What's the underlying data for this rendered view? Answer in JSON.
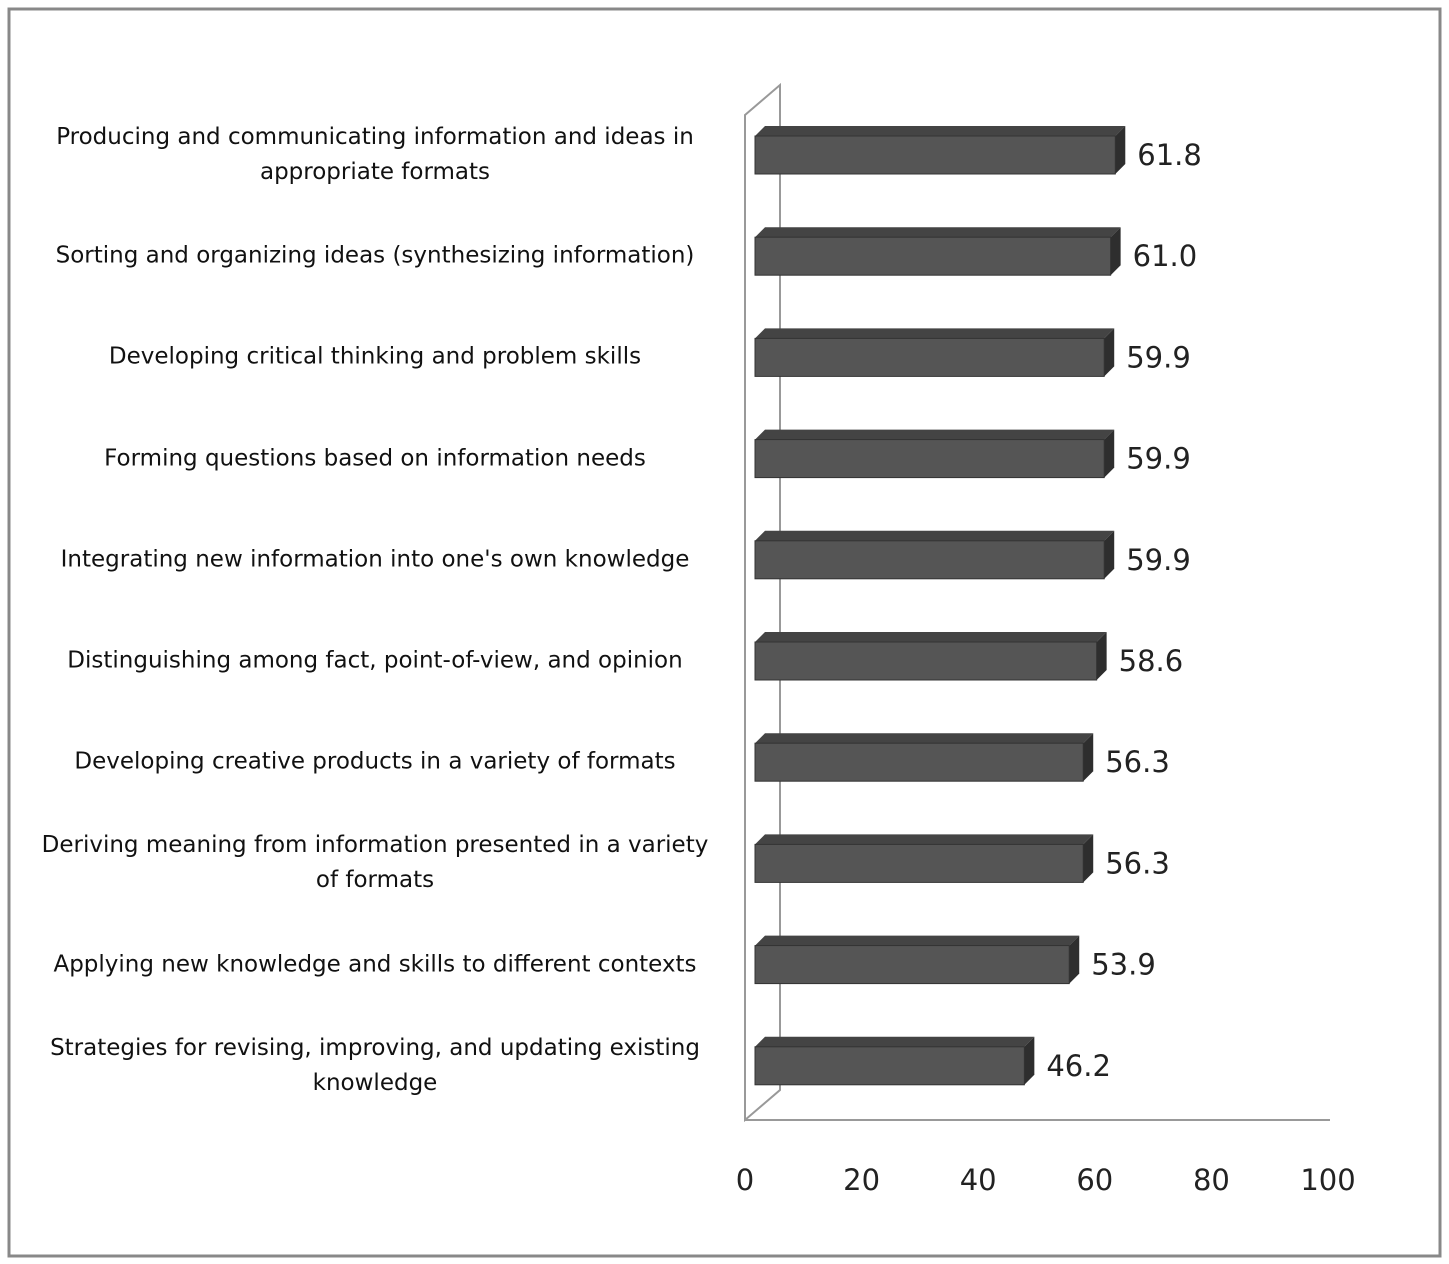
{
  "chart_data": {
    "type": "bar3d_horizontal",
    "categories": [
      "Producing and communicating information and ideas in appropriate formats",
      "Sorting and organizing ideas (synthesizing information)",
      "Developing critical thinking and problem skills",
      "Forming questions based on information needs",
      "Integrating new information into one's own knowledge",
      "Distinguishing among fact, point-of-view, and opinion",
      "Developing creative products in a variety of formats",
      "Deriving meaning from information presented in a variety of formats",
      "Applying new knowledge and skills to different contexts",
      "Strategies for revising, improving, and updating existing knowledge"
    ],
    "values": [
      61.8,
      61.0,
      59.9,
      59.9,
      59.9,
      58.6,
      56.3,
      56.3,
      53.9,
      46.2
    ],
    "value_labels": [
      "61.8",
      "61.0",
      "59.9",
      "59.9",
      "59.9",
      "58.6",
      "56.3",
      "56.3",
      "53.9",
      "46.2"
    ],
    "color": "#555555",
    "xlim": [
      0,
      100
    ],
    "xticks": [
      0,
      20,
      40,
      60,
      80,
      100
    ],
    "grid": false
  }
}
